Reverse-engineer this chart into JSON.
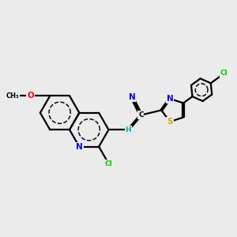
{
  "bg": "#ebebeb",
  "bond_color": "#000000",
  "lw": 1.6,
  "colors": {
    "C": "#000000",
    "N": "#0000ff",
    "O": "#ff0000",
    "S": "#ccaa00",
    "Cl_green": "#00cc00",
    "H": "#00aaaa"
  },
  "dbo": 0.07
}
